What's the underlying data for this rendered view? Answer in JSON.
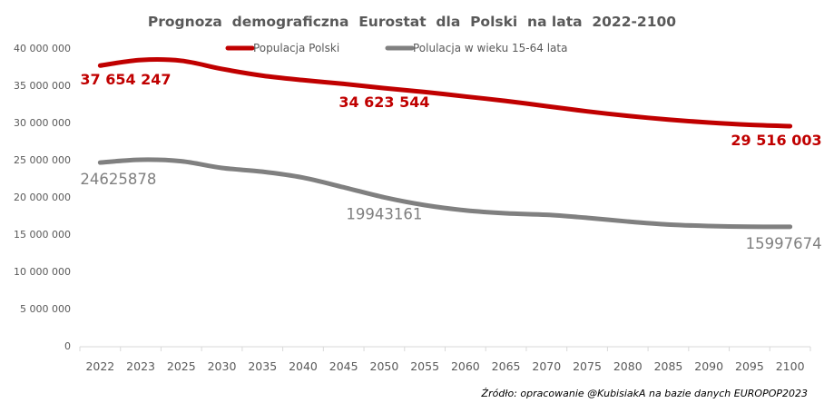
{
  "chart_data": {
    "type": "line",
    "title": "Prognoza  demograficzna  Eurostat  dla  Polski  na lata  2022-2100",
    "xlabel": "",
    "ylabel": "",
    "ylim": [
      0,
      40000000
    ],
    "ytick_step": 5000000,
    "ytick_labels": [
      "0",
      "5 000 000",
      "10 000 000",
      "15 000 000",
      "20 000 000",
      "25 000 000",
      "30 000 000",
      "35 000 000",
      "40 000 000"
    ],
    "grid": false,
    "legend_position": "top-center",
    "smooth": true,
    "categories": [
      "2022",
      "2023",
      "2025",
      "2030",
      "2035",
      "2040",
      "2045",
      "2050",
      "2055",
      "2060",
      "2065",
      "2070",
      "2075",
      "2080",
      "2085",
      "2090",
      "2095",
      "2100"
    ],
    "series": [
      {
        "name": "Populacja Polski",
        "color": "#c00000",
        "values": [
          37654247,
          38400000,
          38300000,
          37200000,
          36300000,
          35700000,
          35200000,
          34623544,
          34100000,
          33500000,
          32900000,
          32200000,
          31500000,
          30900000,
          30400000,
          30000000,
          29700000,
          29516003
        ],
        "data_labels": [
          {
            "index": 0,
            "text": "37 654 247"
          },
          {
            "index": 7,
            "text": "34 623 544"
          },
          {
            "index": 17,
            "text": "29 516 003"
          }
        ]
      },
      {
        "name": "Polulacja w wieku 15-64 lata",
        "color": "#808080",
        "values": [
          24625878,
          25000000,
          24800000,
          23900000,
          23400000,
          22600000,
          21300000,
          19943161,
          18900000,
          18200000,
          17800000,
          17600000,
          17200000,
          16700000,
          16300000,
          16100000,
          16000000,
          15997674
        ],
        "data_labels": [
          {
            "index": 0,
            "text": "24625878"
          },
          {
            "index": 7,
            "text": "19943161"
          },
          {
            "index": 17,
            "text": "15997674"
          }
        ]
      }
    ],
    "source_note": "Źródło: opracowanie @KubisiakA na bazie danych EUROPOP2023"
  }
}
